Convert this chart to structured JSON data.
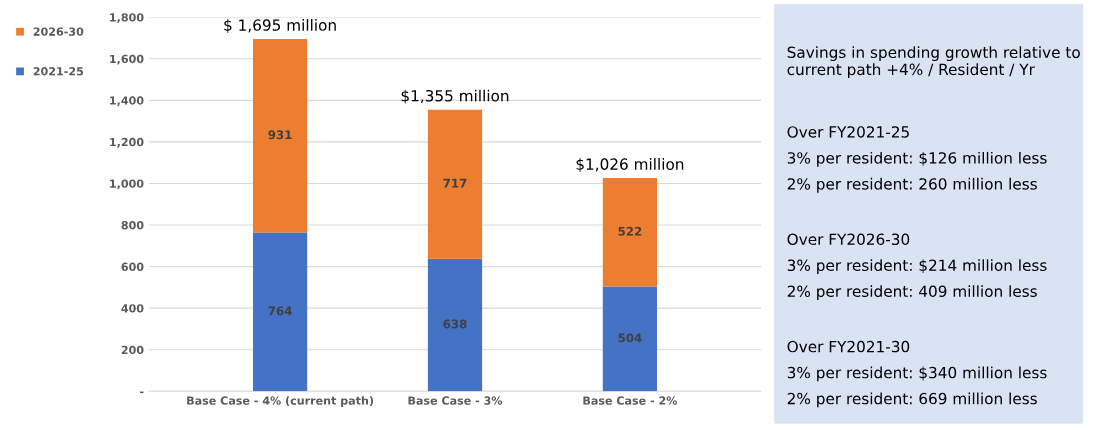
{
  "chart_data": {
    "type": "bar",
    "stacked": true,
    "categories": [
      "Base Case - 4% (current path)",
      "Base Case - 3%",
      "Base Case - 2%"
    ],
    "series": [
      {
        "name": "2021-25",
        "color": "#4472c4",
        "values": [
          764,
          638,
          504
        ]
      },
      {
        "name": "2026-30",
        "color": "#ed7d31",
        "values": [
          931,
          717,
          522
        ]
      }
    ],
    "totals": [
      "$ 1,695 million",
      "$1,355 million",
      "$1,026 million"
    ],
    "ylim": [
      0,
      1800
    ],
    "yticks": [
      {
        "value": 0,
        "label": "-"
      },
      {
        "value": 200,
        "label": "200"
      },
      {
        "value": 400,
        "label": "400"
      },
      {
        "value": 600,
        "label": "600"
      },
      {
        "value": 800,
        "label": "800"
      },
      {
        "value": 1000,
        "label": "1,000"
      },
      {
        "value": 1200,
        "label": "1,200"
      },
      {
        "value": 1400,
        "label": "1,400"
      },
      {
        "value": 1600,
        "label": "1,600"
      },
      {
        "value": 1800,
        "label": "1,800"
      }
    ],
    "grid": "y",
    "legend": "left",
    "data_labels": true,
    "annotations": [
      "Savings in spending growth relative to current path +4% / Resident / Yr",
      "Over FY2021-25",
      "3% per resident: $126 million less",
      "2% per resident: 260 million less",
      "Over FY2026-30",
      "3% per resident: $214 million less",
      "2% per resident: 409 million less",
      "Over FY2021-30",
      "3% per resident: $340 million less",
      "2% per resident: 669 million less"
    ]
  }
}
